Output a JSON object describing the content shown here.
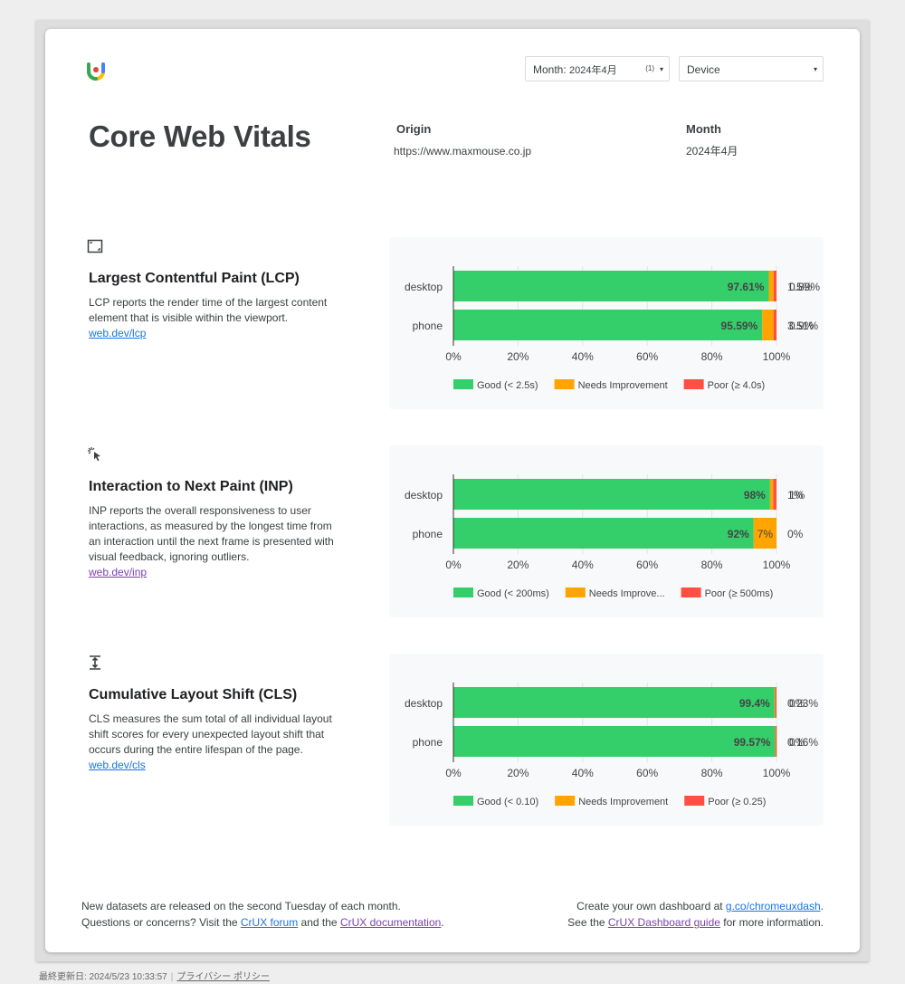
{
  "header": {
    "title": "Core Web Vitals",
    "month_filter": {
      "label": "Month:",
      "value": "2024年4月",
      "count": "(1)"
    },
    "device_filter": {
      "value": "Device"
    },
    "origin_label": "Origin",
    "origin_value": "https://www.maxmouse.co.jp",
    "month_label": "Month",
    "month_value": "2024年4月"
  },
  "metrics": [
    {
      "id": "lcp",
      "icon": "viewport-frame-icon",
      "title": "Largest Contentful Paint (LCP)",
      "description": "LCP reports the render time of the largest content element that is visible within the viewport.",
      "link": "web.dev/lcp",
      "link_visited": false
    },
    {
      "id": "inp",
      "icon": "click-cursor-icon",
      "title": "Interaction to Next Paint (INP)",
      "description": "INP reports the overall responsiveness to user interactions, as measured by the longest time from an interaction until the next frame is presented with visual feedback, ignoring outliers.",
      "link": "web.dev/inp",
      "link_visited": true
    },
    {
      "id": "cls",
      "icon": "vertical-shift-icon",
      "title": "Cumulative Layout Shift (CLS)",
      "description": "CLS measures the sum total of all individual layout shift scores for every unexpected layout shift that occurs during the entire lifespan of the page.",
      "link": "web.dev/cls",
      "link_visited": false
    }
  ],
  "chart_data": [
    {
      "type": "bar",
      "orientation": "horizontal",
      "stacked": true,
      "categories": [
        "desktop",
        "phone"
      ],
      "series": [
        {
          "name": "Good (< 2.5s)",
          "color": "#34ce6a",
          "values": [
            97.61,
            95.59
          ],
          "labels": [
            "97.61%",
            "95.59%"
          ]
        },
        {
          "name": "Needs Improvement",
          "color": "#ffa400",
          "values": [
            1.5,
            3.51
          ],
          "labels": [
            "1.5%",
            "3.51%"
          ]
        },
        {
          "name": "Poor (≥ 4.0s)",
          "color": "#ff4e42",
          "values": [
            0.89,
            0.9
          ],
          "labels": [
            "0.89%",
            "0.9%"
          ]
        }
      ],
      "x_ticks": [
        "0%",
        "20%",
        "40%",
        "60%",
        "80%",
        "100%"
      ],
      "xlim": [
        0,
        100
      ],
      "legend": "bottom"
    },
    {
      "type": "bar",
      "orientation": "horizontal",
      "stacked": true,
      "categories": [
        "desktop",
        "phone"
      ],
      "series": [
        {
          "name": "Good (< 200ms)",
          "color": "#34ce6a",
          "values": [
            98,
            92
          ],
          "labels": [
            "98%",
            "92%"
          ]
        },
        {
          "name": "Needs Improve...",
          "color": "#ffa400",
          "values": [
            1,
            7
          ],
          "labels": [
            "1%",
            "7%"
          ]
        },
        {
          "name": "Poor (≥ 500ms)",
          "color": "#ff4e42",
          "values": [
            1,
            0
          ],
          "labels": [
            "1%",
            "0%"
          ]
        }
      ],
      "x_ticks": [
        "0%",
        "20%",
        "40%",
        "60%",
        "80%",
        "100%"
      ],
      "xlim": [
        0,
        100
      ],
      "legend": "bottom"
    },
    {
      "type": "bar",
      "orientation": "horizontal",
      "stacked": true,
      "categories": [
        "desktop",
        "phone"
      ],
      "series": [
        {
          "name": "Good (< 0.10)",
          "color": "#34ce6a",
          "values": [
            99.4,
            99.57
          ],
          "labels": [
            "99.4%",
            "99.57%"
          ]
        },
        {
          "name": "Needs Improvement",
          "color": "#ffa400",
          "values": [
            0.23,
            0.16
          ],
          "labels": [
            "0.23%",
            "0.16%"
          ]
        },
        {
          "name": "Poor (≥ 0.25)",
          "color": "#ff4e42",
          "values": [
            0.37,
            0.27
          ],
          "labels": [
            "0%",
            "0%"
          ]
        }
      ],
      "x_ticks": [
        "0%",
        "20%",
        "40%",
        "60%",
        "80%",
        "100%"
      ],
      "xlim": [
        0,
        100
      ],
      "legend": "bottom"
    }
  ],
  "footer": {
    "left_line1": "New datasets are released on the second Tuesday of each month.",
    "left_line2_prefix": "Questions or concerns? Visit the ",
    "forum_link": "CrUX forum",
    "left_line2_mid": " and the ",
    "docs_link": "CrUX documentation",
    "left_line2_suffix": ".",
    "right_line1_prefix": "Create your own dashboard at ",
    "dash_link": "g.co/chromeuxdash",
    "right_line1_suffix": ".",
    "right_line2_prefix": "See the ",
    "guide_link": "CrUX Dashboard guide",
    "right_line2_suffix": " for more information."
  },
  "status_bar": {
    "last_updated": "最終更新日: 2024/5/23 10:33:57",
    "privacy_link": "プライバシー ポリシー"
  }
}
